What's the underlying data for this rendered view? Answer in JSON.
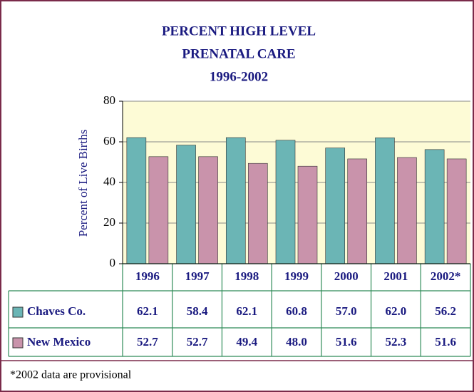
{
  "chart_data": {
    "type": "bar",
    "title": [
      "PERCENT HIGH LEVEL",
      "PRENATAL CARE"
    ],
    "subtitle": "1996-2002",
    "y_label": "Percent of Live Births",
    "categories": [
      "1996",
      "1997",
      "1998",
      "1999",
      "2000",
      "2001",
      "2002*"
    ],
    "series": [
      {
        "name": "Chaves Co.",
        "color": "#6bb5b5",
        "values": [
          62.1,
          58.4,
          62.1,
          60.8,
          57.0,
          62.0,
          56.2
        ],
        "value_labels": [
          "62.1",
          "58.4",
          "62.1",
          "60.8",
          "57.0",
          "62.0",
          "56.2"
        ]
      },
      {
        "name": "New Mexico",
        "color": "#c993ab",
        "values": [
          52.7,
          52.7,
          49.4,
          48.0,
          51.6,
          52.3,
          51.6
        ],
        "value_labels": [
          "52.7",
          "52.7",
          "49.4",
          "48.0",
          "51.6",
          "52.3",
          "51.6"
        ]
      }
    ],
    "ylim": [
      0,
      80
    ],
    "yticks": [
      0,
      20,
      40,
      60,
      80
    ],
    "grid": true,
    "footnote": "*2002 data are provisional"
  }
}
